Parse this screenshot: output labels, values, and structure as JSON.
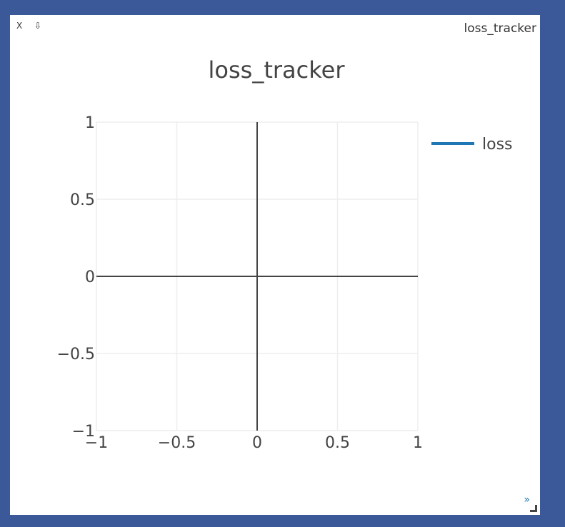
{
  "window": {
    "close_label": "X",
    "save_label": "⇩",
    "title": "loss_tracker",
    "expand_label": "»"
  },
  "chart_data": {
    "type": "line",
    "title": "loss_tracker",
    "xlabel": "",
    "ylabel": "",
    "xlim": [
      -1,
      1
    ],
    "ylim": [
      -1,
      1
    ],
    "xticks": [
      -1,
      -0.5,
      0,
      0.5,
      1
    ],
    "yticks": [
      -1,
      -0.5,
      0,
      0.5,
      1
    ],
    "xtick_labels": [
      "−1",
      "−0.5",
      "0",
      "0.5",
      "1"
    ],
    "ytick_labels": [
      "−1",
      "−0.5",
      "0",
      "0.5",
      "1"
    ],
    "grid": true,
    "legend_position": "top-right",
    "series": [
      {
        "name": "loss",
        "color": "#1f77b4",
        "x": [],
        "y": []
      }
    ]
  }
}
